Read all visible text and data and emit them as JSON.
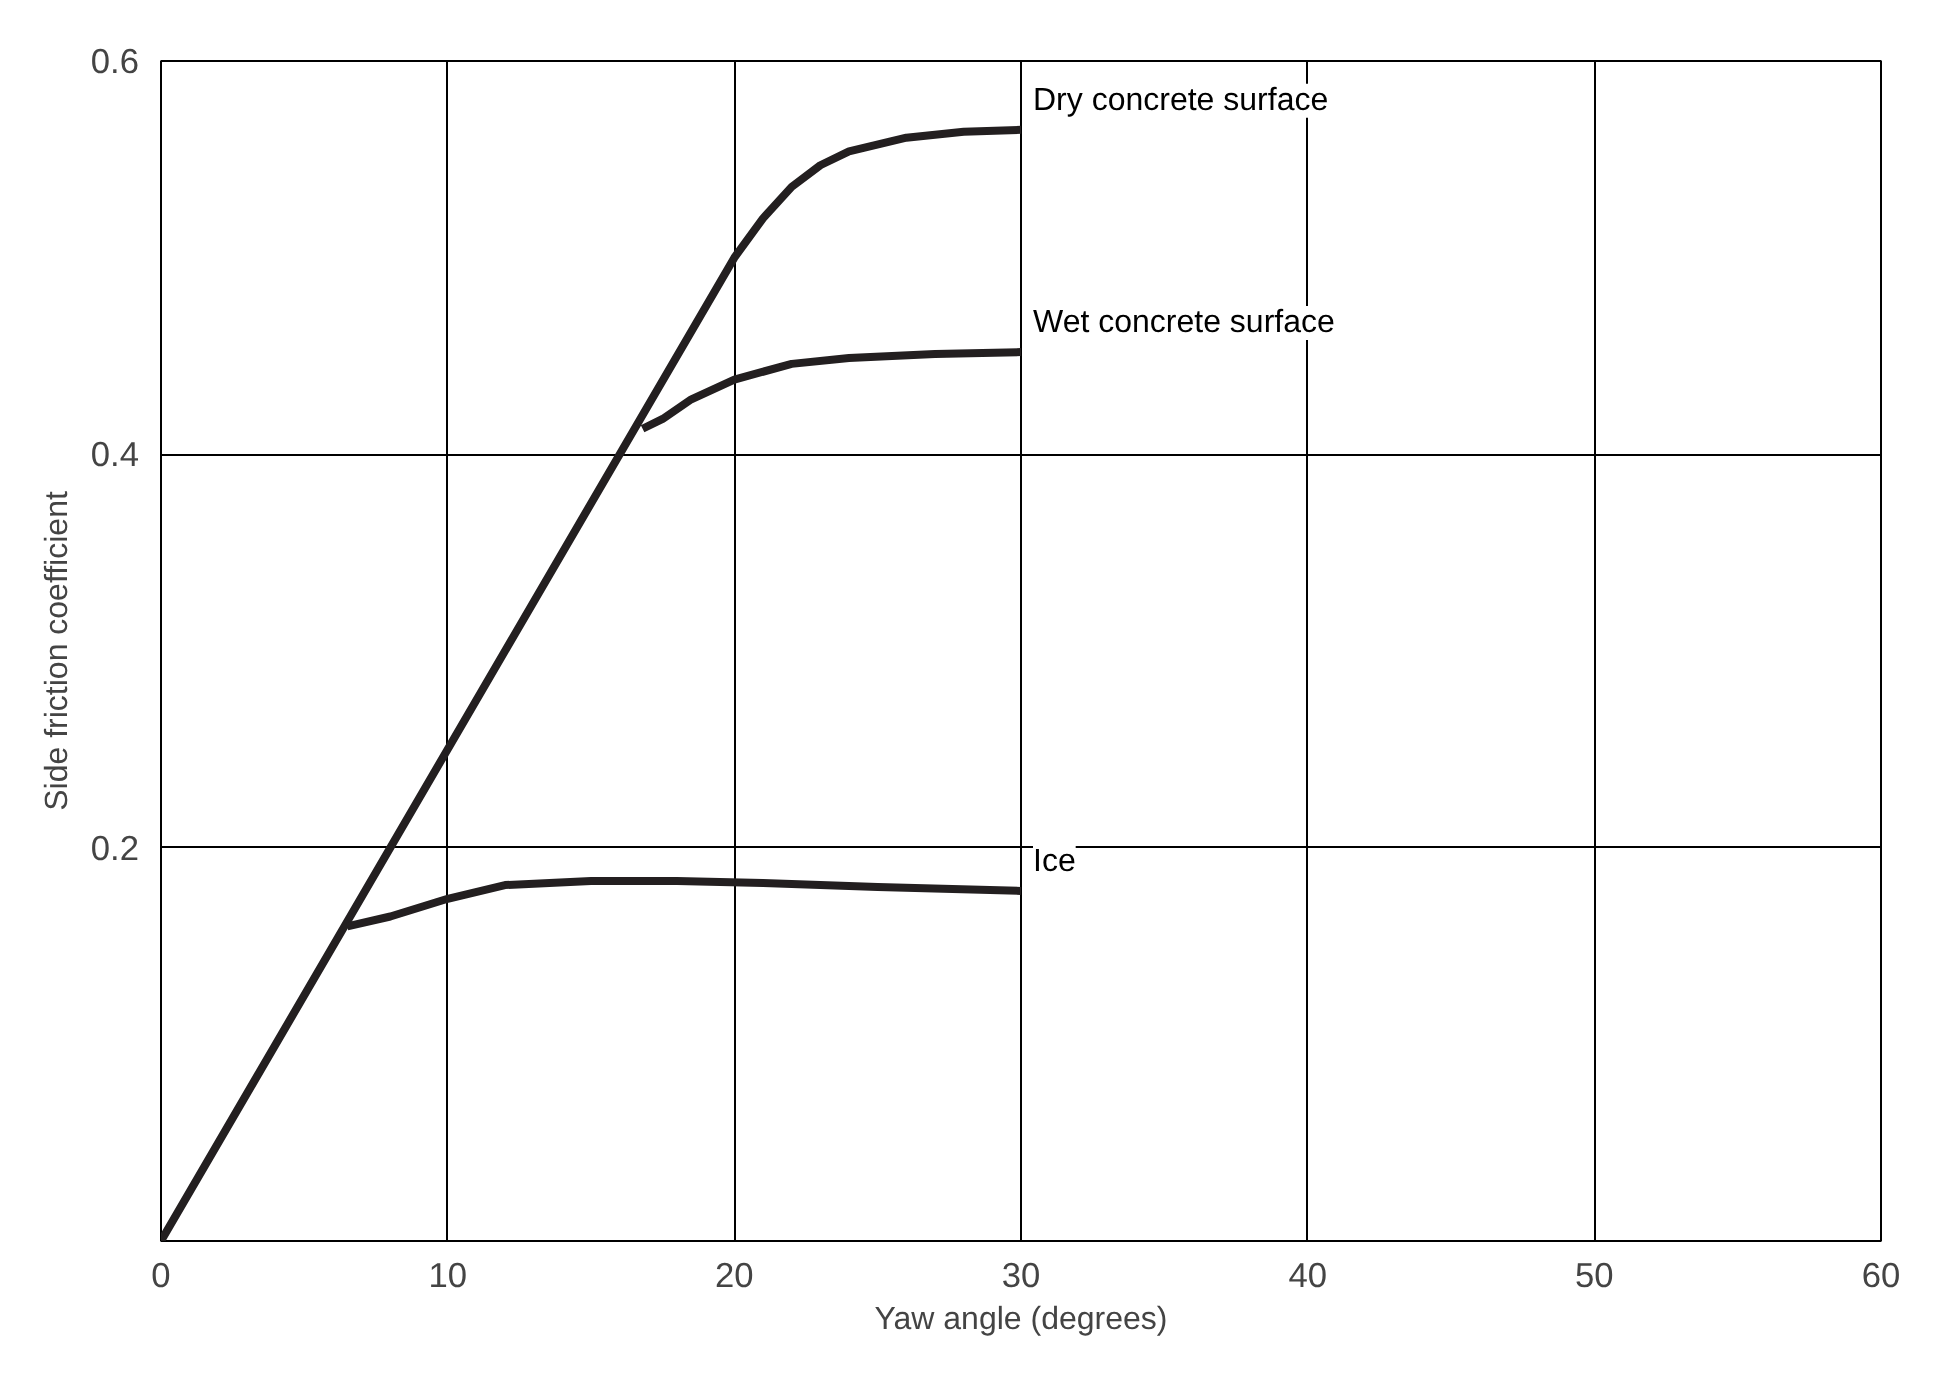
{
  "chart_data": {
    "type": "line",
    "xlabel": "Yaw angle (degrees)",
    "ylabel": "Side friction coefficient",
    "xlim": [
      0,
      60
    ],
    "xticks": [
      0,
      10,
      20,
      30,
      40,
      50,
      60
    ],
    "ylim": [
      0,
      0.6
    ],
    "yticks": [
      {
        "value": 0,
        "label": null
      },
      0.2,
      0.4,
      0.6
    ],
    "grid": true,
    "legend": false,
    "marker": "none",
    "line_style": "solid",
    "series": [
      {
        "name": "Dry concrete surface",
        "color": "#231f20",
        "x": [
          0,
          20,
          21,
          22,
          23,
          24,
          26,
          28,
          30
        ],
        "values": [
          0,
          0.5,
          0.52,
          0.536,
          0.547,
          0.554,
          0.561,
          0.564,
          0.565
        ]
      },
      {
        "name": "Wet concrete surface",
        "color": "#231f20",
        "x": [
          16.8,
          17.5,
          18.5,
          20,
          22,
          24,
          27,
          30
        ],
        "values": [
          0.413,
          0.418,
          0.428,
          0.438,
          0.446,
          0.449,
          0.451,
          0.452
        ]
      },
      {
        "name": "Ice",
        "color": "#231f20",
        "x": [
          6.5,
          8,
          10,
          12,
          15,
          18,
          21,
          25,
          30
        ],
        "values": [
          0.16,
          0.165,
          0.174,
          0.181,
          0.183,
          0.183,
          0.182,
          0.18,
          0.178
        ]
      }
    ]
  }
}
